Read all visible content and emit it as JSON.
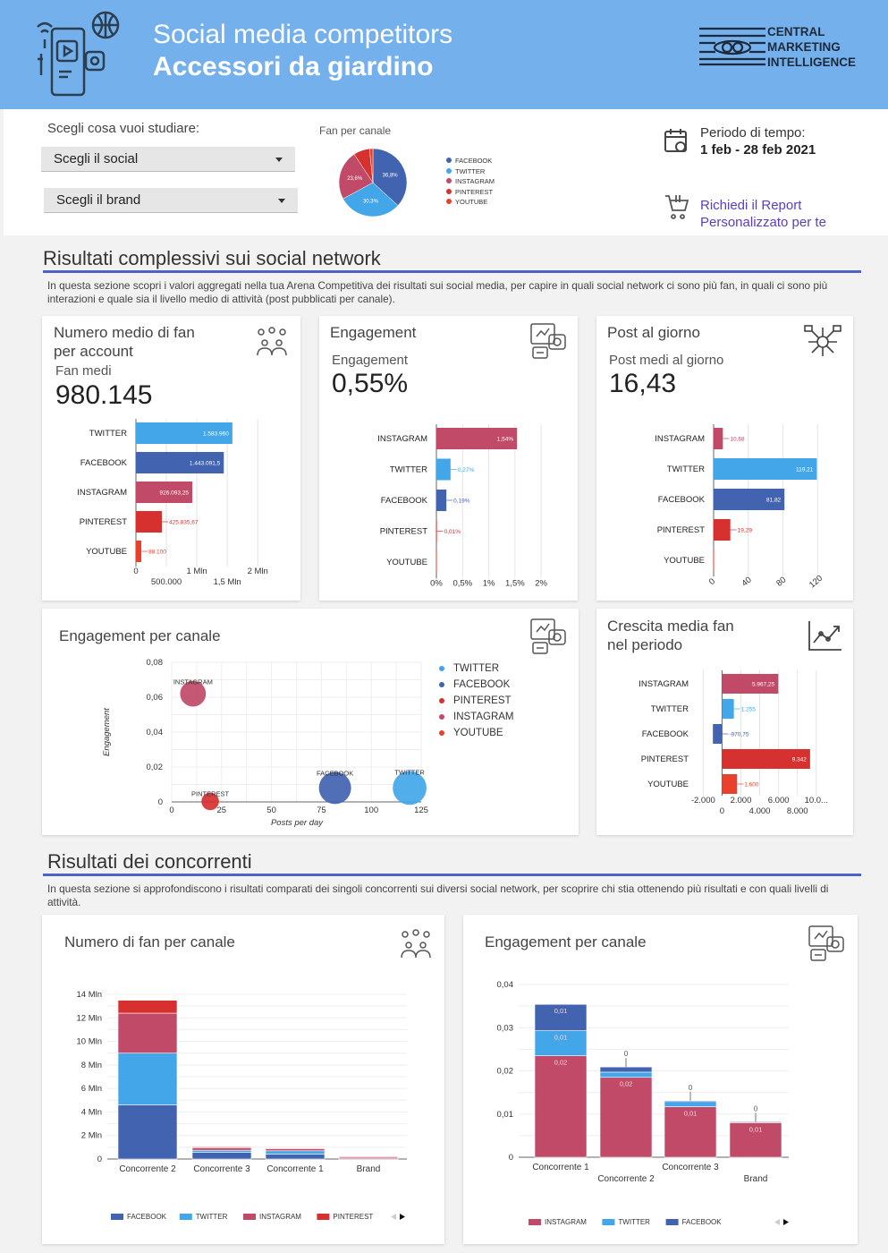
{
  "header": {
    "title": "Social media competitors",
    "subtitle": "Accessori da giardino",
    "logo_lines": [
      "CENTRAL",
      "MARKETING",
      "INTELLIGENCE"
    ]
  },
  "controls": {
    "choose_label": "Scegli cosa vuoi studiare:",
    "social_dropdown": "Scegli il social",
    "brand_dropdown": "Scegli il brand",
    "period_label": "Periodo di tempo:",
    "period_value": "1 feb - 28 feb 2021",
    "report_link_line1": "Richiedi il Report",
    "report_link_line2": "Personalizzato per te"
  },
  "colors": {
    "FACEBOOK": "#4263b0",
    "TWITTER": "#43a6e9",
    "INSTAGRAM": "#c04a68",
    "PINTEREST": "#d6302f",
    "YOUTUBE": "#e8402c",
    "accent": "#4f63c5",
    "header": "#74b0ec"
  },
  "section1": {
    "title": "Risultati complessivi sui social network",
    "description": "In questa sezione scopri i valori aggregati nella tua Arena Competitiva dei risultati sui social media, per capire in quali social network ci sono più fan, in quali ci sono più interazioni e quale sia il livello medio di attività (post pubblicati per canale)."
  },
  "kpi_fan": {
    "title_line1": "Numero medio di fan",
    "title_line2": "per account",
    "label": "Fan medi",
    "value": "980.145"
  },
  "kpi_eng": {
    "title": "Engagement",
    "label": "Engagement",
    "value": "0,55%"
  },
  "kpi_post": {
    "title": "Post al giorno",
    "label": "Post medi al giorno",
    "value": "16,43"
  },
  "scatter_card": {
    "title": "Engagement per canale"
  },
  "growth_card": {
    "title_line1": "Crescita media fan",
    "title_line2": "nel periodo"
  },
  "section2": {
    "title": "Risultati dei concorrenti",
    "description": "In questa sezione si approfondiscono i risultati comparati dei singoli concorrenti sui diversi social network, per scoprire chi stia ottenendo più risultati e con quali livelli di attività."
  },
  "comp_fan_card": {
    "title": "Numero di fan per canale"
  },
  "comp_eng_card": {
    "title": "Engagement per canale"
  },
  "chart_data": [
    {
      "type": "pie",
      "title": "Fan per canale",
      "legend": "right",
      "slices": [
        {
          "name": "FACEBOOK",
          "value": 36.8,
          "label": "36,8%"
        },
        {
          "name": "TWITTER",
          "value": 30.3,
          "label": "30,3%"
        },
        {
          "name": "INSTAGRAM",
          "value": 23.6,
          "label": "23,6%"
        },
        {
          "name": "PINTEREST",
          "value": 7.7,
          "label": ""
        },
        {
          "name": "YOUTUBE",
          "value": 1.6,
          "label": ""
        }
      ]
    },
    {
      "type": "bar",
      "orientation": "horizontal",
      "categories": [
        "TWITTER",
        "FACEBOOK",
        "INSTAGRAM",
        "PINTEREST",
        "YOUTUBE"
      ],
      "values": [
        1583960,
        1443091.5,
        926093.25,
        425835.67,
        88100
      ],
      "labels": [
        "1.583.960",
        "1.443.091,5",
        "926.093,25",
        "425.835,67",
        "88.100"
      ],
      "xlim": [
        0,
        2100000
      ],
      "xticks": [
        {
          "v": 0,
          "t": "0"
        },
        {
          "v": 500000,
          "t": "500.000"
        },
        {
          "v": 1000000,
          "t": "1 Mln"
        },
        {
          "v": 1500000,
          "t": "1,5 Mln"
        },
        {
          "v": 2000000,
          "t": "2 Mln"
        }
      ],
      "grid": true
    },
    {
      "type": "bar",
      "orientation": "horizontal",
      "categories": [
        "INSTAGRAM",
        "TWITTER",
        "FACEBOOK",
        "PINTEREST",
        "YOUTUBE"
      ],
      "values": [
        1.54,
        0.27,
        0.19,
        0.01,
        0
      ],
      "labels": [
        "1,54%",
        "0,27%",
        "0,19%",
        "0,01%",
        ""
      ],
      "xlim": [
        0,
        2.1
      ],
      "xticks": [
        {
          "v": 0,
          "t": "0%"
        },
        {
          "v": 0.5,
          "t": "0,5%"
        },
        {
          "v": 1,
          "t": "1%"
        },
        {
          "v": 1.5,
          "t": "1,5%"
        },
        {
          "v": 2,
          "t": "2%"
        }
      ],
      "grid": true
    },
    {
      "type": "bar",
      "orientation": "horizontal",
      "categories": [
        "INSTAGRAM",
        "TWITTER",
        "FACEBOOK",
        "PINTEREST",
        "YOUTUBE"
      ],
      "values": [
        10.68,
        119.21,
        81.82,
        19.29,
        0
      ],
      "labels": [
        "10,68",
        "119,21",
        "81,82",
        "19,29",
        ""
      ],
      "xlim": [
        0,
        125
      ],
      "xticks": [
        {
          "v": 0,
          "t": "0"
        },
        {
          "v": 40,
          "t": "40"
        },
        {
          "v": 80,
          "t": "80"
        },
        {
          "v": 120,
          "t": "120"
        }
      ],
      "grid": true
    },
    {
      "type": "scatter",
      "xlabel": "Posts per day",
      "ylabel": "Engagement",
      "xlim": [
        0,
        125
      ],
      "ylim": [
        0,
        0.08
      ],
      "xticks": [
        {
          "v": 0,
          "t": "0"
        },
        {
          "v": 25,
          "t": "25"
        },
        {
          "v": 50,
          "t": "50"
        },
        {
          "v": 75,
          "t": "75"
        },
        {
          "v": 100,
          "t": "100"
        },
        {
          "v": 125,
          "t": "125"
        }
      ],
      "yticks": [
        {
          "v": 0,
          "t": "0"
        },
        {
          "v": 0.02,
          "t": "0,02"
        },
        {
          "v": 0.04,
          "t": "0,04"
        },
        {
          "v": 0.06,
          "t": "0,06"
        },
        {
          "v": 0.08,
          "t": "0,08"
        }
      ],
      "legend": [
        "TWITTER",
        "FACEBOOK",
        "PINTEREST",
        "INSTAGRAM",
        "YOUTUBE"
      ],
      "points": [
        {
          "name": "INSTAGRAM",
          "x": 10.68,
          "y": 0.062,
          "size": 926093
        },
        {
          "name": "PINTEREST",
          "x": 19.29,
          "y": 0.0003,
          "size": 425836
        },
        {
          "name": "FACEBOOK",
          "x": 81.82,
          "y": 0.008,
          "size": 1443092
        },
        {
          "name": "TWITTER",
          "x": 119.21,
          "y": 0.008,
          "size": 1583960
        }
      ]
    },
    {
      "type": "bar",
      "orientation": "horizontal",
      "categories": [
        "INSTAGRAM",
        "TWITTER",
        "FACEBOOK",
        "PINTEREST",
        "YOUTUBE"
      ],
      "values": [
        5967.25,
        1255,
        -970.75,
        9342,
        1600
      ],
      "labels": [
        "5.967,25",
        "1.255",
        "-970,75",
        "9.342",
        "1.600"
      ],
      "xlim": [
        -2600,
        10400
      ],
      "xticks": [
        {
          "v": -2000,
          "t": "-2.000"
        },
        {
          "v": 0,
          "t": "0"
        },
        {
          "v": 2000,
          "t": "2.000"
        },
        {
          "v": 4000,
          "t": "4.000"
        },
        {
          "v": 6000,
          "t": "6.000"
        },
        {
          "v": 8000,
          "t": "8.000"
        },
        {
          "v": 10000,
          "t": "10.0..."
        }
      ],
      "grid": true
    },
    {
      "type": "bar",
      "stacked": true,
      "categories": [
        "Concorrente 2",
        "Concorrente 3",
        "Concorrente 1",
        "Brand"
      ],
      "series": [
        {
          "name": "FACEBOOK",
          "values": [
            4600000,
            580000,
            420000,
            20000
          ]
        },
        {
          "name": "TWITTER",
          "values": [
            4400000,
            170000,
            280000,
            0
          ]
        },
        {
          "name": "INSTAGRAM",
          "values": [
            3400000,
            200000,
            170000,
            140000
          ]
        },
        {
          "name": "PINTEREST",
          "values": [
            1100000,
            80000,
            50000,
            40000
          ]
        }
      ],
      "ylim": [
        0,
        14000000
      ],
      "yticks": [
        {
          "v": 0,
          "t": "0"
        },
        {
          "v": 2000000,
          "t": "2 Mln"
        },
        {
          "v": 4000000,
          "t": "4 Mln"
        },
        {
          "v": 6000000,
          "t": "6 Mln"
        },
        {
          "v": 8000000,
          "t": "8 Mln"
        },
        {
          "v": 10000000,
          "t": "10 Mln"
        },
        {
          "v": 12000000,
          "t": "12 Mln"
        },
        {
          "v": 14000000,
          "t": "14 Mln"
        }
      ],
      "legend": "bottom"
    },
    {
      "type": "bar",
      "stacked": true,
      "categories": [
        "Concorrente 1",
        "Concorrente 2",
        "Concorrente 3",
        "Brand"
      ],
      "series": [
        {
          "name": "INSTAGRAM",
          "values": [
            0.0235,
            0.0185,
            0.0117,
            0.008
          ],
          "labels": [
            "0,02",
            "0,02",
            "0,01",
            "0,01"
          ]
        },
        {
          "name": "TWITTER",
          "values": [
            0.0058,
            0.0012,
            0.0012,
            0
          ],
          "labels": [
            "0,01",
            "",
            "",
            ""
          ]
        },
        {
          "name": "FACEBOOK",
          "values": [
            0.0061,
            0.0012,
            0.0002,
            0.0002
          ],
          "labels": [
            "0,01",
            "0",
            "0",
            "0"
          ]
        }
      ],
      "ylim": [
        0,
        0.04
      ],
      "yticks": [
        {
          "v": 0,
          "t": "0"
        },
        {
          "v": 0.01,
          "t": "0,01"
        },
        {
          "v": 0.02,
          "t": "0,02"
        },
        {
          "v": 0.03,
          "t": "0,03"
        },
        {
          "v": 0.04,
          "t": "0,04"
        }
      ],
      "legend": "bottom"
    }
  ]
}
